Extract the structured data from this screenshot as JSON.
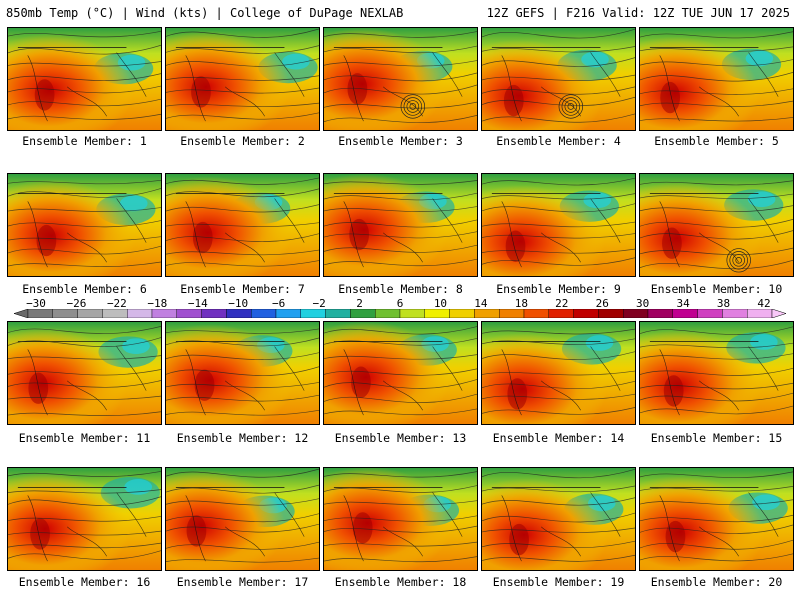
{
  "header": {
    "left_title": "850mb Temp (°C) | Wind (kts) | College of DuPage NEXLAB",
    "right_title": "12Z GEFS | F216 Valid: 12Z TUE JUN 17 2025"
  },
  "panels": [
    {
      "label": "Ensemble Member: 1"
    },
    {
      "label": "Ensemble Member: 2"
    },
    {
      "label": "Ensemble Member: 3"
    },
    {
      "label": "Ensemble Member: 4"
    },
    {
      "label": "Ensemble Member: 5"
    },
    {
      "label": "Ensemble Member: 6"
    },
    {
      "label": "Ensemble Member: 7"
    },
    {
      "label": "Ensemble Member: 8"
    },
    {
      "label": "Ensemble Member: 9"
    },
    {
      "label": "Ensemble Member: 10"
    },
    {
      "label": "Ensemble Member: 11"
    },
    {
      "label": "Ensemble Member: 12"
    },
    {
      "label": "Ensemble Member: 13"
    },
    {
      "label": "Ensemble Member: 14"
    },
    {
      "label": "Ensemble Member: 15"
    },
    {
      "label": "Ensemble Member: 16"
    },
    {
      "label": "Ensemble Member: 17"
    },
    {
      "label": "Ensemble Member: 18"
    },
    {
      "label": "Ensemble Member: 19"
    },
    {
      "label": "Ensemble Member: 20"
    }
  ],
  "colorbar": {
    "ticks": [
      "−30",
      "−26",
      "−22",
      "−18",
      "−14",
      "−10",
      "−6",
      "−2",
      "2",
      "6",
      "10",
      "14",
      "18",
      "22",
      "26",
      "30",
      "34",
      "38",
      "42"
    ],
    "colors": [
      "#7a7a7a",
      "#8e8e8e",
      "#a6a6a6",
      "#bdbdbd",
      "#d4b8e8",
      "#c080e0",
      "#a050d0",
      "#7030c0",
      "#3030c0",
      "#2060e0",
      "#20a0f0",
      "#20d0e0",
      "#20b0a0",
      "#30a040",
      "#70c030",
      "#c0e020",
      "#f0f000",
      "#f0d000",
      "#f0a000",
      "#f08000",
      "#f05000",
      "#e02000",
      "#c00000",
      "#a00000",
      "#800020",
      "#a00060",
      "#c00090",
      "#d040c0",
      "#e080e0",
      "#f0b0f0"
    ]
  }
}
